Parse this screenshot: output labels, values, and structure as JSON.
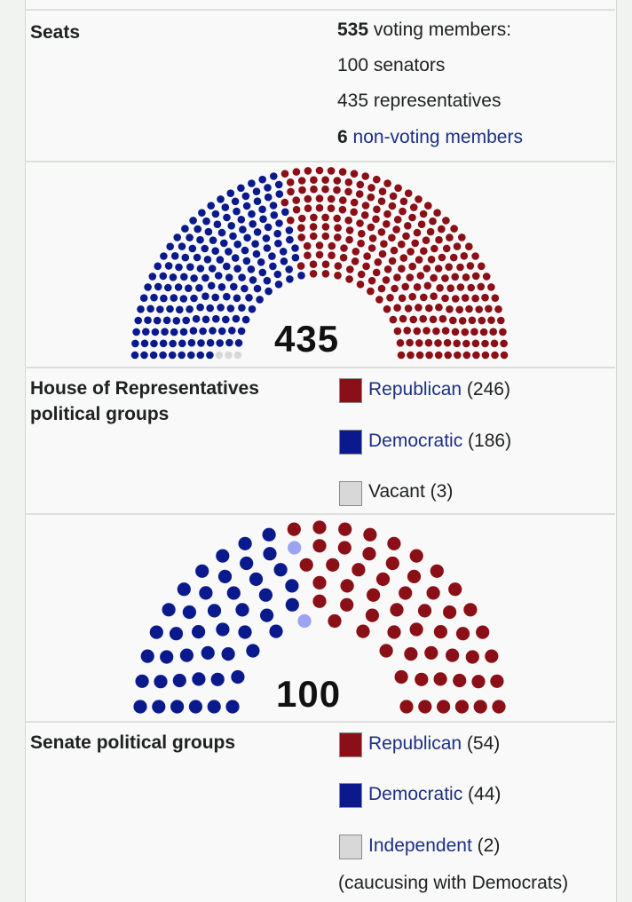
{
  "colors": {
    "republican": "#8b0f16",
    "democratic": "#0a1a8c",
    "vacant": "#d8d8d8",
    "independent": "#9ba4f0",
    "link": "#1d2f86"
  },
  "seats": {
    "label": "Seats",
    "voting_count": "535",
    "voting_text": "voting members:",
    "senators": "100 senators",
    "representatives": "435 representatives",
    "nonvoting_count": "6",
    "nonvoting_text": "non-voting members"
  },
  "house": {
    "total": "435",
    "groups_label": "House of Representatives political groups",
    "parties": [
      {
        "name": "Republican",
        "count_text": "(246)",
        "seats": 246,
        "linked": true
      },
      {
        "name": "Democratic",
        "count_text": "(186)",
        "seats": 186,
        "linked": true
      },
      {
        "name": "Vacant",
        "count_text": "(3)",
        "seats": 3,
        "linked": false
      }
    ]
  },
  "senate": {
    "total": "100",
    "groups_label": "Senate political groups",
    "parties": [
      {
        "name": "Republican",
        "count_text": "(54)",
        "seats": 54,
        "linked": true
      },
      {
        "name": "Democratic",
        "count_text": "(44)",
        "seats": 44,
        "linked": true
      },
      {
        "name": "Independent",
        "count_text": "(2)",
        "seats": 2,
        "linked": true
      }
    ],
    "independent_note": "(caucusing with Democrats)"
  }
}
